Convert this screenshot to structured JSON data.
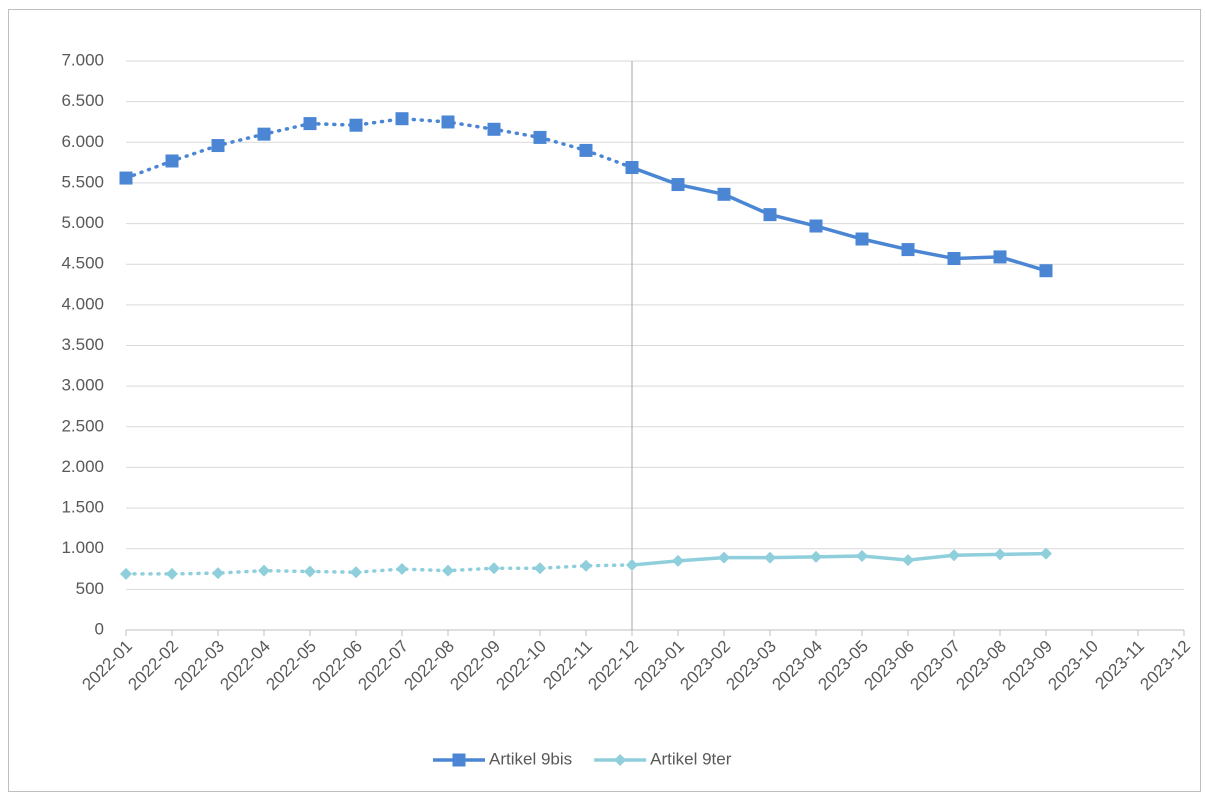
{
  "chart_data": {
    "type": "line",
    "categories": [
      "2022-01",
      "2022-02",
      "2022-03",
      "2022-04",
      "2022-05",
      "2022-06",
      "2022-07",
      "2022-08",
      "2022-09",
      "2022-10",
      "2022-11",
      "2022-12",
      "2023-01",
      "2023-02",
      "2023-03",
      "2023-04",
      "2023-05",
      "2023-06",
      "2023-07",
      "2023-08",
      "2023-09",
      "2023-10",
      "2023-11",
      "2023-12"
    ],
    "series": [
      {
        "name": "Artikel 9bis",
        "color": "#4a86d4",
        "marker": "square",
        "values": [
          5560,
          5770,
          5960,
          6100,
          6230,
          6210,
          6290,
          6250,
          6160,
          6060,
          5900,
          5690,
          5480,
          5360,
          5110,
          4970,
          4810,
          4680,
          4570,
          4590,
          4420,
          null,
          null,
          null
        ]
      },
      {
        "name": "Artikel 9ter",
        "color": "#8fcfdc",
        "marker": "diamond",
        "values": [
          690,
          690,
          700,
          730,
          720,
          710,
          750,
          730,
          760,
          760,
          790,
          800,
          850,
          890,
          890,
          900,
          910,
          860,
          920,
          930,
          940,
          null,
          null,
          null
        ]
      }
    ],
    "ylim": [
      0,
      7000
    ],
    "yticks": [
      0,
      500,
      {
        "value": 1000,
        "label": "1.000"
      },
      {
        "value": 1500,
        "label": "1.500"
      },
      {
        "value": 2000,
        "label": "2.000"
      },
      {
        "value": 2500,
        "label": "2.500"
      },
      {
        "value": 3000,
        "label": "3.000"
      },
      {
        "value": 3500,
        "label": "3.500"
      },
      {
        "value": 4000,
        "label": "4.000"
      },
      {
        "value": 4500,
        "label": "4.500"
      },
      {
        "value": 5000,
        "label": "5.000"
      },
      {
        "value": 5500,
        "label": "5.500"
      },
      {
        "value": 6000,
        "label": "6.000"
      },
      {
        "value": 6500,
        "label": "6.500"
      },
      {
        "value": 7000,
        "label": "7.000"
      }
    ],
    "grid": true,
    "split_at": "2022-12",
    "legend": "bottom"
  }
}
